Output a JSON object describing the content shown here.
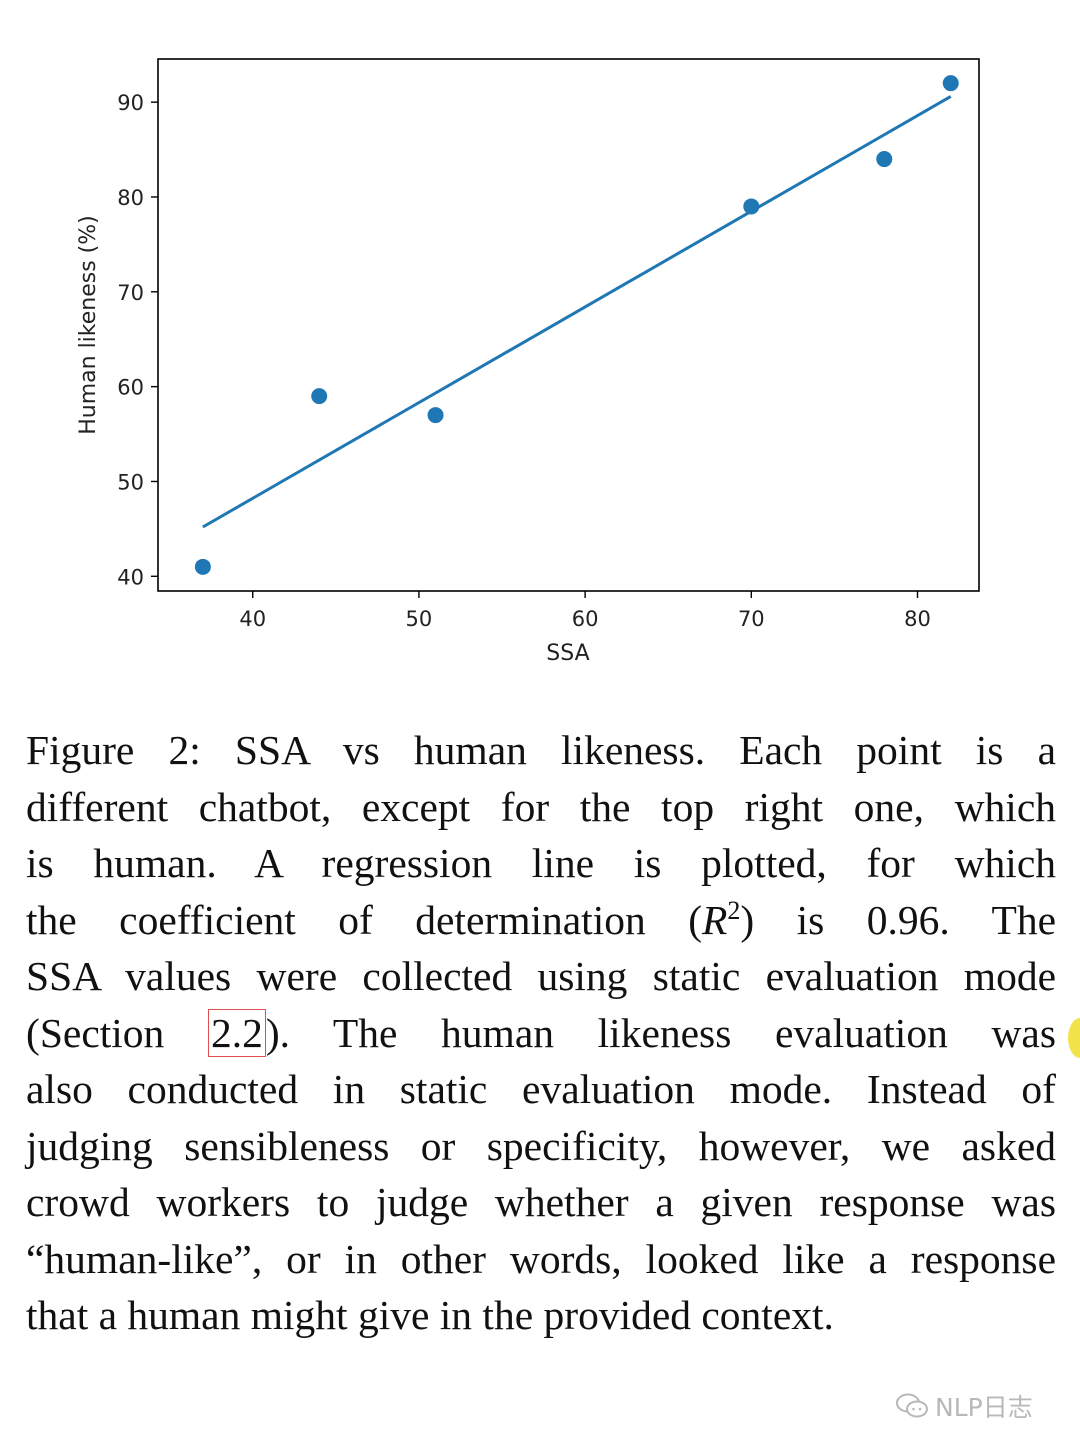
{
  "chart_data": {
    "type": "scatter",
    "xlabel": "SSA",
    "ylabel": "Human likeness (%)",
    "xlim": [
      34.3,
      83.7
    ],
    "ylim": [
      38.45,
      94.55
    ],
    "xticks": [
      40,
      50,
      60,
      70,
      80
    ],
    "yticks": [
      40,
      50,
      60,
      70,
      80,
      90
    ],
    "points": [
      {
        "x": 37,
        "y": 41
      },
      {
        "x": 44,
        "y": 59
      },
      {
        "x": 51,
        "y": 57
      },
      {
        "x": 70,
        "y": 79
      },
      {
        "x": 78,
        "y": 84
      },
      {
        "x": 82,
        "y": 92
      }
    ],
    "regression_line": {
      "x": [
        37,
        82
      ],
      "y": [
        45.2,
        90.6
      ]
    },
    "color": "#1f77b4",
    "grid": false,
    "legend": "none"
  },
  "caption": {
    "line1": "Figure 2: SSA vs human likeness. Each point is a",
    "line2": "different chatbot, except for the top right one, which",
    "line3": "is human. A regression line is plotted, for which",
    "line4_pre": "the coefficient of determination (",
    "line4_r": "R",
    "line4_sup": "2",
    "line4_post": ") is 0.96. The",
    "line5": "SSA values were collected using static evaluation mode",
    "line6_pre": "(Section",
    "line6_ref": "2.2",
    "line6_post": "). The human likeness evaluation was",
    "line7": "also conducted in static evaluation mode. Instead of",
    "line8": "judging sensibleness or specificity, however, we asked",
    "line9": "crowd workers to judge whether a given response was",
    "line10": "“human-like”, or in other words, looked like a response",
    "line11": "that a human might give in the provided context."
  },
  "watermark": {
    "text": "NLP日志"
  }
}
